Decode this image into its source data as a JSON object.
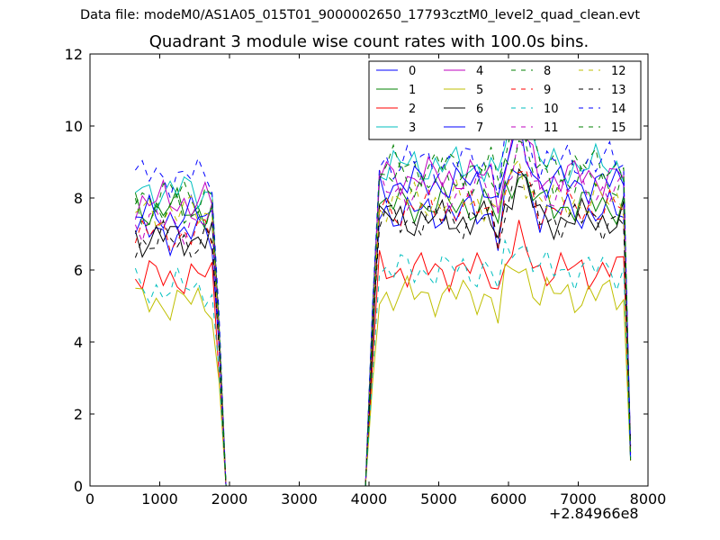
{
  "figure": {
    "suptitle": "Data file: modeM0/AS1A05_015T01_9000002650_17793cztM0_level2_quad_clean.evt",
    "title": "Quadrant 3 module wise count rates with 100.0s bins.",
    "x_offset_label": "+2.84966e8"
  },
  "chart_data": {
    "type": "line",
    "title": "Quadrant 3 module wise count rates with 100.0s bins.",
    "xlabel": "",
    "ylabel": "",
    "xlim": [
      0,
      8000
    ],
    "ylim": [
      0,
      12
    ],
    "x_offset": 284966000,
    "xticks": [
      0,
      1000,
      2000,
      3000,
      4000,
      5000,
      6000,
      7000,
      8000
    ],
    "yticks": [
      0,
      2,
      4,
      6,
      8,
      10,
      12
    ],
    "grid": false,
    "legend_position": "top-right",
    "legend_columns": 4,
    "profile_x": [
      650,
      750,
      850,
      950,
      1050,
      1150,
      1250,
      1350,
      1450,
      1550,
      1650,
      1750,
      1850,
      1950,
      2050,
      3950,
      4050,
      4150,
      4250,
      4350,
      4450,
      4550,
      4650,
      4750,
      4850,
      4950,
      5050,
      5150,
      5250,
      5350,
      5450,
      5550,
      5650,
      5750,
      5850,
      5950,
      6050,
      6150,
      6250,
      6350,
      6450,
      6550,
      6650,
      6750,
      6850,
      6950,
      7050,
      7150,
      7250,
      7350,
      7450,
      7550,
      7650,
      7750
    ],
    "series": [
      {
        "name": "0",
        "color": "#0000ff",
        "dash": "solid",
        "level_a": 7.0,
        "level_b": 7.6,
        "peak": 1.2
      },
      {
        "name": "1",
        "color": "#008000",
        "dash": "solid",
        "level_a": 7.7,
        "level_b": 7.8,
        "peak": 1.0
      },
      {
        "name": "2",
        "color": "#ff0000",
        "dash": "solid",
        "level_a": 5.8,
        "level_b": 6.0,
        "peak": 0.8
      },
      {
        "name": "3",
        "color": "#00bfbf",
        "dash": "solid",
        "level_a": 8.2,
        "level_b": 8.9,
        "peak": 2.0
      },
      {
        "name": "4",
        "color": "#bf00bf",
        "dash": "solid",
        "level_a": 7.9,
        "level_b": 8.6,
        "peak": 1.2
      },
      {
        "name": "5",
        "color": "#bfbf00",
        "dash": "solid",
        "level_a": 5.1,
        "level_b": 5.3,
        "peak": 0.9
      },
      {
        "name": "6",
        "color": "#000000",
        "dash": "solid",
        "level_a": 6.9,
        "level_b": 7.4,
        "peak": 1.3
      },
      {
        "name": "7",
        "color": "#0000ff",
        "dash": "solid",
        "level_a": 7.5,
        "level_b": 8.4,
        "peak": 1.4
      },
      {
        "name": "8",
        "color": "#008000",
        "dash": "dashed",
        "level_a": 8.1,
        "level_b": 8.9,
        "peak": 1.5
      },
      {
        "name": "9",
        "color": "#ff0000",
        "dash": "dashed",
        "level_a": 7.0,
        "level_b": 7.7,
        "peak": 1.1
      },
      {
        "name": "10",
        "color": "#00bfbf",
        "dash": "dashed",
        "level_a": 5.5,
        "level_b": 6.0,
        "peak": 0.9
      },
      {
        "name": "11",
        "color": "#bf00bf",
        "dash": "dashed",
        "level_a": 7.3,
        "level_b": 8.2,
        "peak": 1.1
      },
      {
        "name": "12",
        "color": "#bfbf00",
        "dash": "dashed",
        "level_a": 7.6,
        "level_b": 7.9,
        "peak": 1.0
      },
      {
        "name": "13",
        "color": "#000000",
        "dash": "dashed",
        "level_a": 6.8,
        "level_b": 7.4,
        "peak": 1.2
      },
      {
        "name": "14",
        "color": "#0000ff",
        "dash": "dashed",
        "level_a": 8.6,
        "level_b": 9.0,
        "peak": 1.1
      },
      {
        "name": "15",
        "color": "#008000",
        "dash": "dashed",
        "level_a": 7.6,
        "level_b": 8.5,
        "peak": 1.2
      }
    ]
  }
}
